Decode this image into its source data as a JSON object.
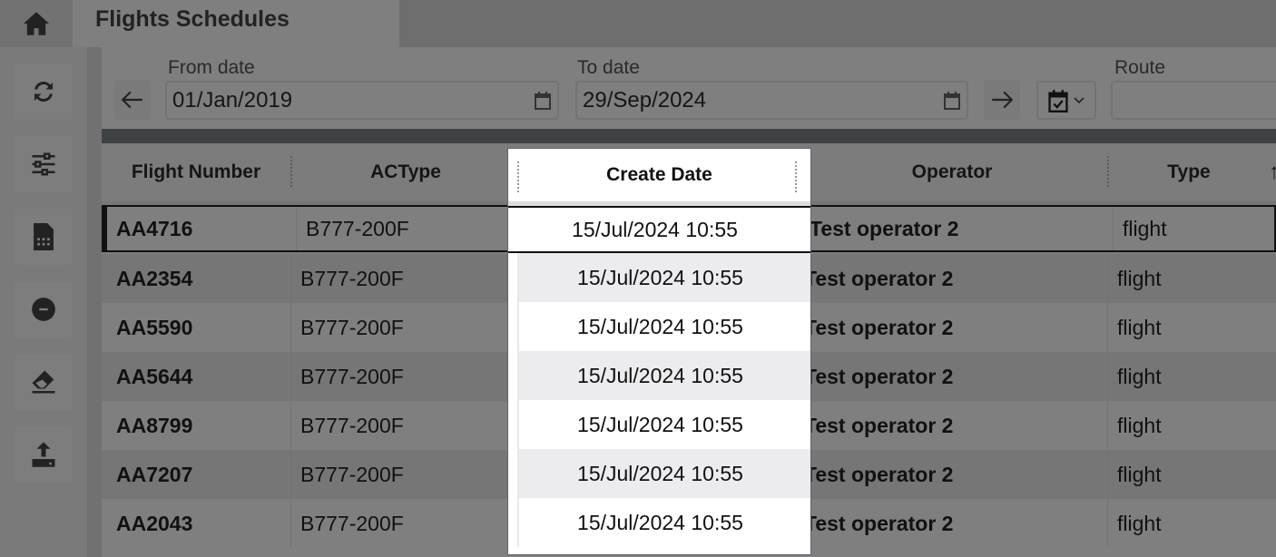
{
  "header": {
    "title": "Flights Schedules",
    "home_icon": "home-icon"
  },
  "sidebar": {
    "items": [
      {
        "icon": "refresh-icon"
      },
      {
        "icon": "sliders-icon"
      },
      {
        "icon": "spreadsheet-icon"
      },
      {
        "icon": "minus-circle-icon"
      },
      {
        "icon": "eraser-icon"
      },
      {
        "icon": "upload-icon"
      }
    ]
  },
  "filters": {
    "from_label": "From date",
    "from_value": "01/Jan/2019",
    "to_label": "To date",
    "to_value": "29/Sep/2024",
    "route_label": "Route",
    "route_value": ""
  },
  "table": {
    "columns": [
      "Flight Number",
      "ACType",
      "Create Date",
      "Operator",
      "Type"
    ],
    "rows": [
      {
        "flight": "AA4716",
        "actype": "B777-200F",
        "create": "15/Jul/2024 10:55",
        "operator": "Test operator 2",
        "type": "flight"
      },
      {
        "flight": "AA2354",
        "actype": "B777-200F",
        "create": "15/Jul/2024 10:55",
        "operator": "Test operator 2",
        "type": "flight"
      },
      {
        "flight": "AA5590",
        "actype": "B777-200F",
        "create": "15/Jul/2024 10:55",
        "operator": "Test operator 2",
        "type": "flight"
      },
      {
        "flight": "AA5644",
        "actype": "B777-200F",
        "create": "15/Jul/2024 10:55",
        "operator": "Test operator 2",
        "type": "flight"
      },
      {
        "flight": "AA8799",
        "actype": "B777-200F",
        "create": "15/Jul/2024 10:55",
        "operator": "Test operator 2",
        "type": "flight"
      },
      {
        "flight": "AA7207",
        "actype": "B777-200F",
        "create": "15/Jul/2024 10:55",
        "operator": "Test operator 2",
        "type": "flight"
      },
      {
        "flight": "AA2043",
        "actype": "B777-200F",
        "create": "15/Jul/2024 10:55",
        "operator": "Test operator 2",
        "type": "flight"
      }
    ],
    "sort_indicator": "↑"
  }
}
